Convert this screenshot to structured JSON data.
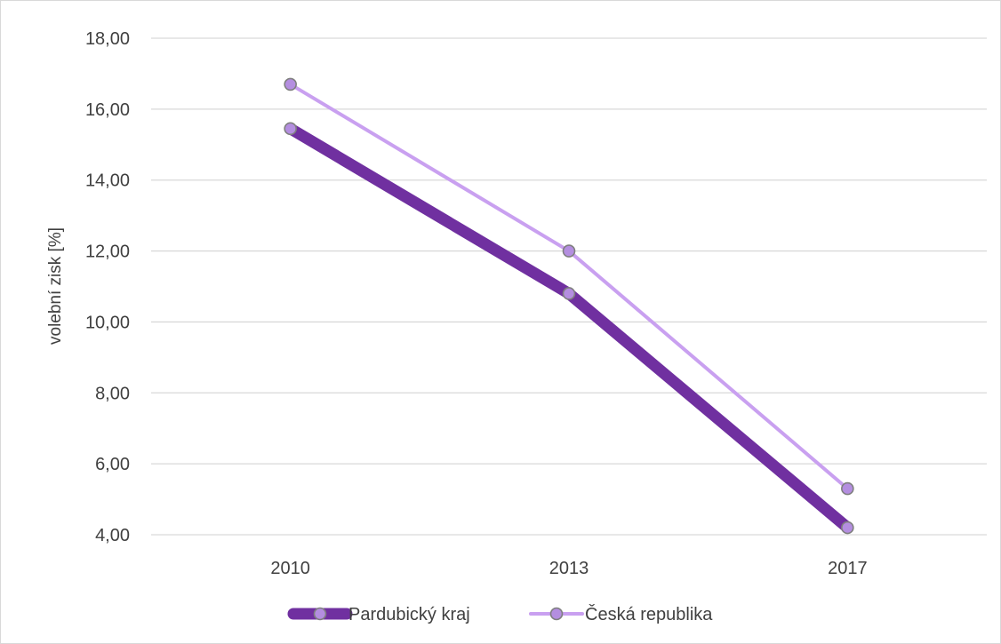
{
  "chart_data": {
    "type": "line",
    "categories": [
      "2010",
      "2013",
      "2017"
    ],
    "series": [
      {
        "name": "Pardubický kraj",
        "values": [
          15.45,
          10.8,
          4.2
        ],
        "color": "#7030a0"
      },
      {
        "name": "Česká republika",
        "values": [
          16.7,
          12.0,
          5.3
        ],
        "color": "#c9a0f0"
      }
    ],
    "marker_fill": "#b48ee0",
    "marker_stroke": "#7f7f7f",
    "ylabel": "volební zisk [%]",
    "xlabel": "",
    "ylim": [
      4,
      18
    ],
    "yticks": [
      "4,00",
      "6,00",
      "8,00",
      "10,00",
      "12,00",
      "14,00",
      "16,00",
      "18,00"
    ],
    "ytick_values": [
      4,
      6,
      8,
      10,
      12,
      14,
      16,
      18
    ],
    "grid": true,
    "legend_position": "bottom"
  }
}
